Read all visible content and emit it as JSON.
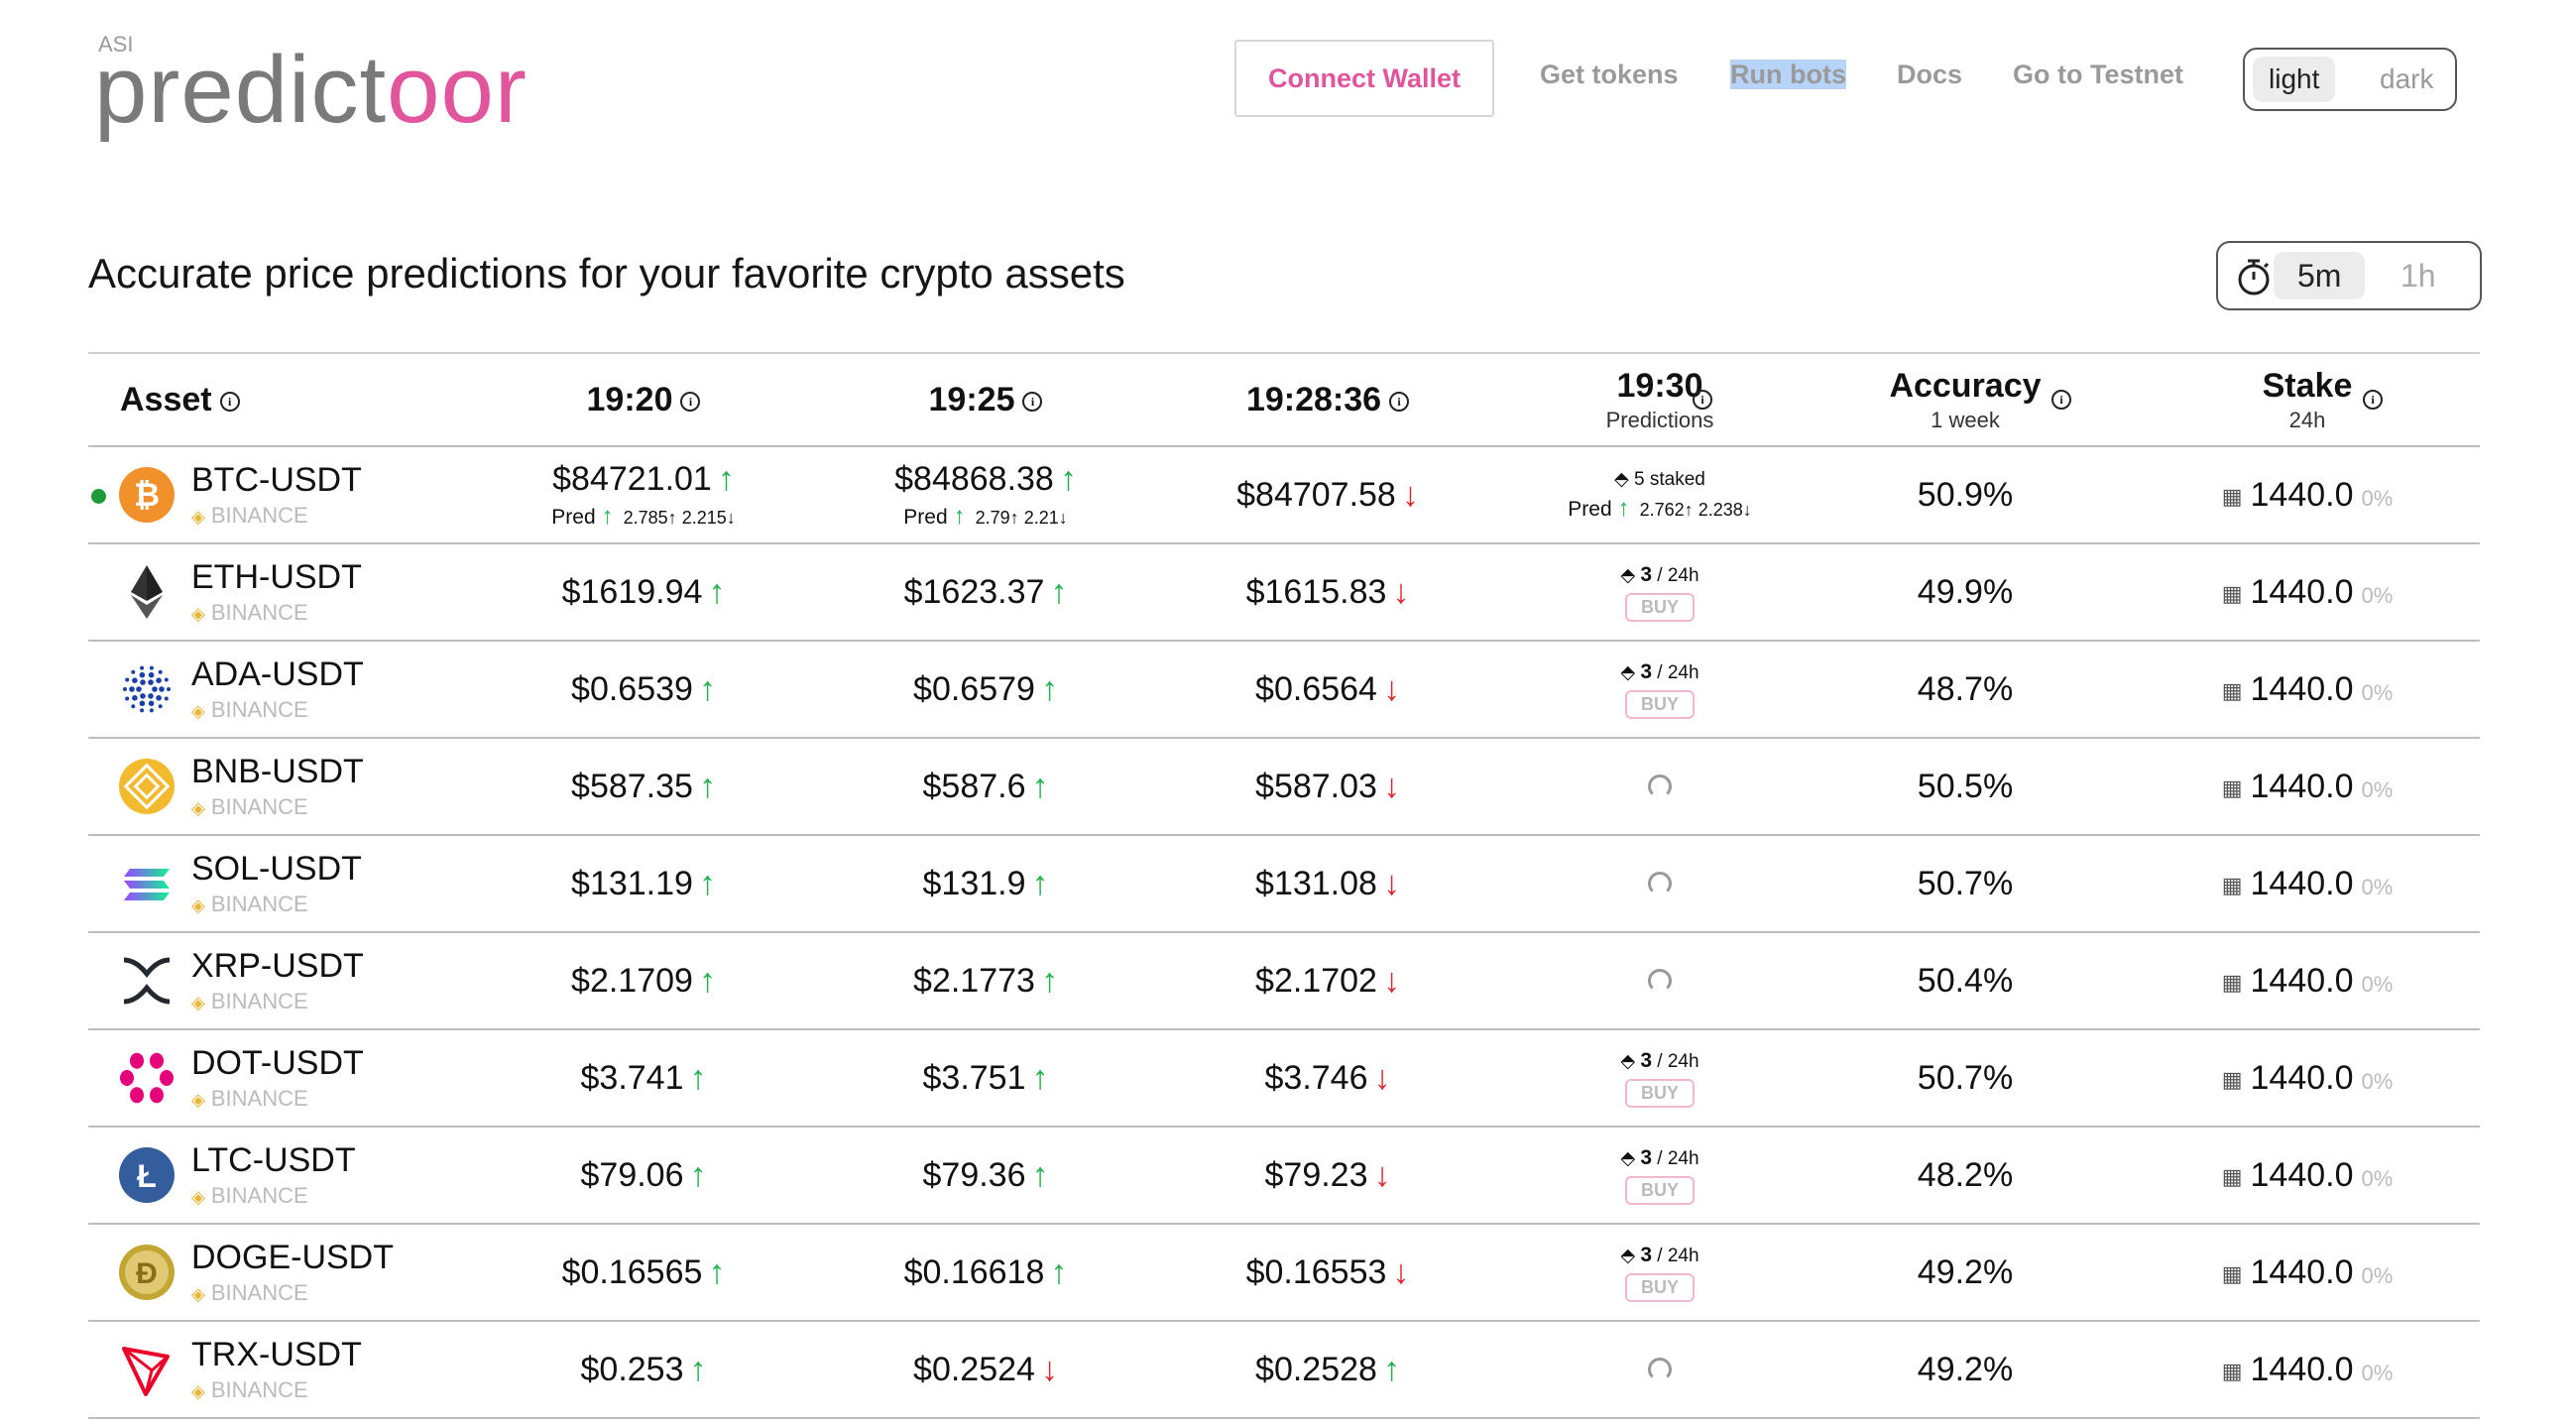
{
  "brand": {
    "prefix": "ASI",
    "name_part1": "predict",
    "name_part2": "oor"
  },
  "nav": {
    "connect": "Connect Wallet",
    "links": [
      "Get tokens",
      "Run bots",
      "Docs",
      "Go to Testnet"
    ],
    "theme": [
      "light",
      "dark"
    ],
    "theme_selected": "light"
  },
  "headline": "Accurate price predictions for your favorite crypto assets",
  "timeframe": {
    "options": [
      "5m",
      "1h"
    ],
    "selected": "5m"
  },
  "columns": {
    "asset": "Asset",
    "t1": "19:20",
    "t2": "19:25",
    "live": "19:28:36",
    "next": "19:30",
    "next_sub": "Predictions",
    "accuracy": "Accuracy",
    "accuracy_sub": "1 week",
    "stake": "Stake",
    "stake_sub": "24h"
  },
  "labels": {
    "pred": "Pred",
    "buy": "BUY",
    "per": "/ 24h",
    "staked": "staked"
  },
  "rows": [
    {
      "pair": "BTC-USDT",
      "exchange": "BINANCE",
      "coin": "btc-icon",
      "live": true,
      "p1": "$84721.01",
      "d1": "up",
      "pred1": {
        "up": "2.785",
        "down": "2.215"
      },
      "p2": "$84868.38",
      "d2": "up",
      "pred2": {
        "up": "2.79",
        "down": "2.21"
      },
      "p3": "$84707.58",
      "d3": "down",
      "next": {
        "kind": "staked",
        "count": "5",
        "up": "2.762",
        "down": "2.238"
      },
      "accuracy": "50.9%",
      "stake": "1440.0",
      "stake_pct": "0%"
    },
    {
      "pair": "ETH-USDT",
      "exchange": "BINANCE",
      "coin": "eth-icon",
      "p1": "$1619.94",
      "d1": "up",
      "p2": "$1623.37",
      "d2": "up",
      "p3": "$1615.83",
      "d3": "down",
      "next": {
        "kind": "buy",
        "count": "3"
      },
      "accuracy": "49.9%",
      "stake": "1440.0",
      "stake_pct": "0%"
    },
    {
      "pair": "ADA-USDT",
      "exchange": "BINANCE",
      "coin": "ada-icon",
      "p1": "$0.6539",
      "d1": "up",
      "p2": "$0.6579",
      "d2": "up",
      "p3": "$0.6564",
      "d3": "down",
      "next": {
        "kind": "buy",
        "count": "3"
      },
      "accuracy": "48.7%",
      "stake": "1440.0",
      "stake_pct": "0%"
    },
    {
      "pair": "BNB-USDT",
      "exchange": "BINANCE",
      "coin": "bnb-icon",
      "p1": "$587.35",
      "d1": "up",
      "p2": "$587.6",
      "d2": "up",
      "p3": "$587.03",
      "d3": "down",
      "next": {
        "kind": "loading"
      },
      "accuracy": "50.5%",
      "stake": "1440.0",
      "stake_pct": "0%"
    },
    {
      "pair": "SOL-USDT",
      "exchange": "BINANCE",
      "coin": "sol-icon",
      "p1": "$131.19",
      "d1": "up",
      "p2": "$131.9",
      "d2": "up",
      "p3": "$131.08",
      "d3": "down",
      "next": {
        "kind": "loading"
      },
      "accuracy": "50.7%",
      "stake": "1440.0",
      "stake_pct": "0%"
    },
    {
      "pair": "XRP-USDT",
      "exchange": "BINANCE",
      "coin": "xrp-icon",
      "p1": "$2.1709",
      "d1": "up",
      "p2": "$2.1773",
      "d2": "up",
      "p3": "$2.1702",
      "d3": "down",
      "next": {
        "kind": "loading"
      },
      "accuracy": "50.4%",
      "stake": "1440.0",
      "stake_pct": "0%"
    },
    {
      "pair": "DOT-USDT",
      "exchange": "BINANCE",
      "coin": "dot-icon",
      "p1": "$3.741",
      "d1": "up",
      "p2": "$3.751",
      "d2": "up",
      "p3": "$3.746",
      "d3": "down",
      "next": {
        "kind": "buy",
        "count": "3"
      },
      "accuracy": "50.7%",
      "stake": "1440.0",
      "stake_pct": "0%"
    },
    {
      "pair": "LTC-USDT",
      "exchange": "BINANCE",
      "coin": "ltc-icon",
      "p1": "$79.06",
      "d1": "up",
      "p2": "$79.36",
      "d2": "up",
      "p3": "$79.23",
      "d3": "down",
      "next": {
        "kind": "buy",
        "count": "3"
      },
      "accuracy": "48.2%",
      "stake": "1440.0",
      "stake_pct": "0%"
    },
    {
      "pair": "DOGE-USDT",
      "exchange": "BINANCE",
      "coin": "doge-icon",
      "p1": "$0.16565",
      "d1": "up",
      "p2": "$0.16618",
      "d2": "up",
      "p3": "$0.16553",
      "d3": "down",
      "next": {
        "kind": "buy",
        "count": "3"
      },
      "accuracy": "49.2%",
      "stake": "1440.0",
      "stake_pct": "0%"
    },
    {
      "pair": "TRX-USDT",
      "exchange": "BINANCE",
      "coin": "trx-icon",
      "p1": "$0.253",
      "d1": "up",
      "p2": "$0.2524",
      "d2": "down",
      "p3": "$0.2528",
      "d3": "up",
      "next": {
        "kind": "loading"
      },
      "accuracy": "49.2%",
      "stake": "1440.0",
      "stake_pct": "0%"
    }
  ]
}
